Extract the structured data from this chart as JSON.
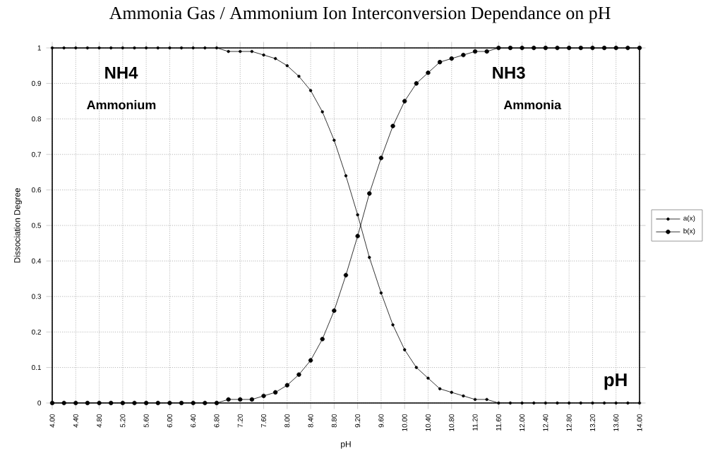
{
  "chart_data": {
    "type": "line",
    "title": "Ammonia Gas / Ammonium Ion Interconversion Dependance on pH",
    "xlabel": "pH",
    "ylabel": "Dissociation Degree",
    "annotations": [
      "NH4",
      "Ammonium",
      "NH3",
      "Ammonia",
      "pH"
    ],
    "x": [
      4.0,
      4.2,
      4.4,
      4.6,
      4.8,
      5.0,
      5.2,
      5.4,
      5.6,
      5.8,
      6.0,
      6.2,
      6.4,
      6.6,
      6.8,
      7.0,
      7.2,
      7.4,
      7.6,
      7.8,
      8.0,
      8.2,
      8.4,
      8.6,
      8.8,
      9.0,
      9.2,
      9.4,
      9.6,
      9.8,
      10.0,
      10.2,
      10.4,
      10.6,
      10.8,
      11.0,
      11.2,
      11.4,
      11.6,
      11.8,
      12.0,
      12.2,
      12.4,
      12.6,
      12.8,
      13.0,
      13.2,
      13.4,
      13.6,
      13.8,
      14.0
    ],
    "series": [
      {
        "name": "a(x)",
        "color": "#000000",
        "values": [
          1,
          1,
          1,
          1,
          1,
          1,
          1,
          1,
          1,
          1,
          1,
          1,
          1,
          1,
          1,
          0.99,
          0.99,
          0.99,
          0.98,
          0.97,
          0.95,
          0.92,
          0.88,
          0.82,
          0.74,
          0.64,
          0.53,
          0.41,
          0.31,
          0.22,
          0.15,
          0.1,
          0.07,
          0.04,
          0.03,
          0.02,
          0.01,
          0.01,
          0,
          0,
          0,
          0,
          0,
          0,
          0,
          0,
          0,
          0,
          0,
          0,
          0
        ]
      },
      {
        "name": "b(x)",
        "color": "#000000",
        "values": [
          0,
          0,
          0,
          0,
          0,
          0,
          0,
          0,
          0,
          0,
          0,
          0,
          0,
          0,
          0,
          0.01,
          0.01,
          0.01,
          0.02,
          0.03,
          0.05,
          0.08,
          0.12,
          0.18,
          0.26,
          0.36,
          0.47,
          0.59,
          0.69,
          0.78,
          0.85,
          0.9,
          0.93,
          0.96,
          0.97,
          0.98,
          0.99,
          0.99,
          1,
          1,
          1,
          1,
          1,
          1,
          1,
          1,
          1,
          1,
          1,
          1,
          1
        ]
      }
    ],
    "xlim": [
      4,
      14
    ],
    "ylim": [
      0,
      1
    ],
    "xticks": [
      {
        "value": 4,
        "label": "4.00"
      },
      {
        "value": 4.4,
        "label": "4.40"
      },
      {
        "value": 4.8,
        "label": "4.80"
      },
      {
        "value": 5.2,
        "label": "5.20"
      },
      {
        "value": 5.6,
        "label": "5.60"
      },
      {
        "value": 6.0,
        "label": "6.00"
      },
      {
        "value": 6.4,
        "label": "6.40"
      },
      {
        "value": 6.8,
        "label": "6.80"
      },
      {
        "value": 7.2,
        "label": "7.20"
      },
      {
        "value": 7.6,
        "label": "7.60"
      },
      {
        "value": 8.0,
        "label": "8.00"
      },
      {
        "value": 8.4,
        "label": "8.40"
      },
      {
        "value": 8.8,
        "label": "8.80"
      },
      {
        "value": 9.2,
        "label": "9.20"
      },
      {
        "value": 9.6,
        "label": "9.60"
      },
      {
        "value": 10.0,
        "label": "10.00"
      },
      {
        "value": 10.4,
        "label": "10.40"
      },
      {
        "value": 10.8,
        "label": "10.80"
      },
      {
        "value": 11.2,
        "label": "11.20"
      },
      {
        "value": 11.6,
        "label": "11.60"
      },
      {
        "value": 12.0,
        "label": "12.00"
      },
      {
        "value": 12.4,
        "label": "12.40"
      },
      {
        "value": 12.8,
        "label": "12.80"
      },
      {
        "value": 13.2,
        "label": "13.20"
      },
      {
        "value": 13.6,
        "label": "13.60"
      },
      {
        "value": 14.0,
        "label": "14.00"
      }
    ],
    "yticks": [
      0,
      0.1,
      0.2,
      0.3,
      0.4,
      0.5,
      0.6,
      0.7,
      0.8,
      0.9,
      1
    ],
    "grid": true,
    "legend": "right",
    "marker": "circle",
    "line_style": "solid"
  }
}
